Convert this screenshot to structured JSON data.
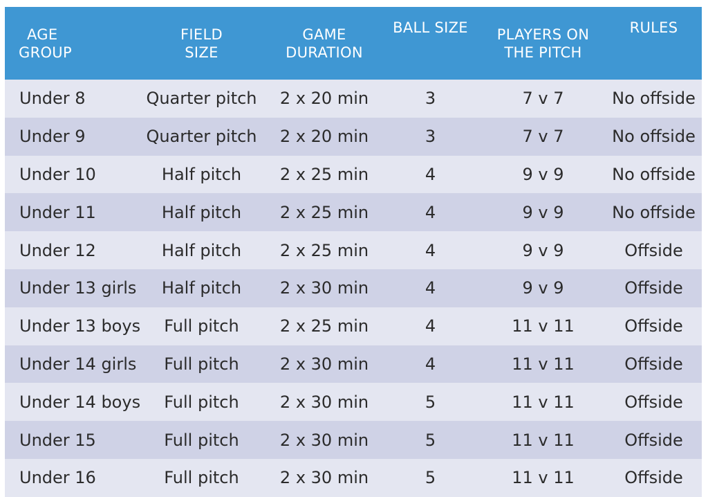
{
  "colors": {
    "header_bg": "#3f97d3",
    "header_text": "#ffffff",
    "row_light": "#e4e6f1",
    "row_dark": "#cfd2e6",
    "body_text": "#2b2b2b"
  },
  "headers": {
    "age_group_1": "AGE",
    "age_group_2": "GROUP",
    "field_size_1": "FIELD",
    "field_size_2": "SIZE",
    "game_duration_1": "GAME",
    "game_duration_2": "DURATION",
    "ball_size": "BALL SIZE",
    "players_1": "PLAYERS ON",
    "players_2": "THE PITCH",
    "rules": "RULES"
  },
  "rows": [
    {
      "age": "Under 8",
      "field": "Quarter pitch",
      "duration": "2 x 20 min",
      "ball": "3",
      "players": "7 v 7",
      "rules": "No offside"
    },
    {
      "age": "Under 9",
      "field": "Quarter pitch",
      "duration": "2 x 20 min",
      "ball": "3",
      "players": "7 v 7",
      "rules": "No offside"
    },
    {
      "age": "Under 10",
      "field": "Half pitch",
      "duration": "2 x 25 min",
      "ball": "4",
      "players": "9 v 9",
      "rules": "No offside"
    },
    {
      "age": "Under 11",
      "field": "Half pitch",
      "duration": "2 x 25 min",
      "ball": "4",
      "players": "9 v 9",
      "rules": "No offside"
    },
    {
      "age": "Under 12",
      "field": "Half pitch",
      "duration": "2 x 25 min",
      "ball": "4",
      "players": "9 v 9",
      "rules": "Offside"
    },
    {
      "age": "Under 13 girls",
      "field": "Half pitch",
      "duration": "2 x 30 min",
      "ball": "4",
      "players": "9 v 9",
      "rules": "Offside"
    },
    {
      "age": "Under 13 boys",
      "field": "Full pitch",
      "duration": "2 x 25 min",
      "ball": "4",
      "players": "11 v 11",
      "rules": "Offside"
    },
    {
      "age": "Under 14 girls",
      "field": "Full pitch",
      "duration": "2 x 30 min",
      "ball": "4",
      "players": "11 v 11",
      "rules": "Offside"
    },
    {
      "age": "Under 14 boys",
      "field": "Full pitch",
      "duration": "2 x 30 min",
      "ball": "5",
      "players": "11 v 11",
      "rules": "Offside"
    },
    {
      "age": "Under 15",
      "field": "Full pitch",
      "duration": "2 x 30 min",
      "ball": "5",
      "players": "11 v 11",
      "rules": "Offside"
    },
    {
      "age": "Under 16",
      "field": "Full pitch",
      "duration": "2 x 30 min",
      "ball": "5",
      "players": "11 v 11",
      "rules": "Offside"
    }
  ]
}
